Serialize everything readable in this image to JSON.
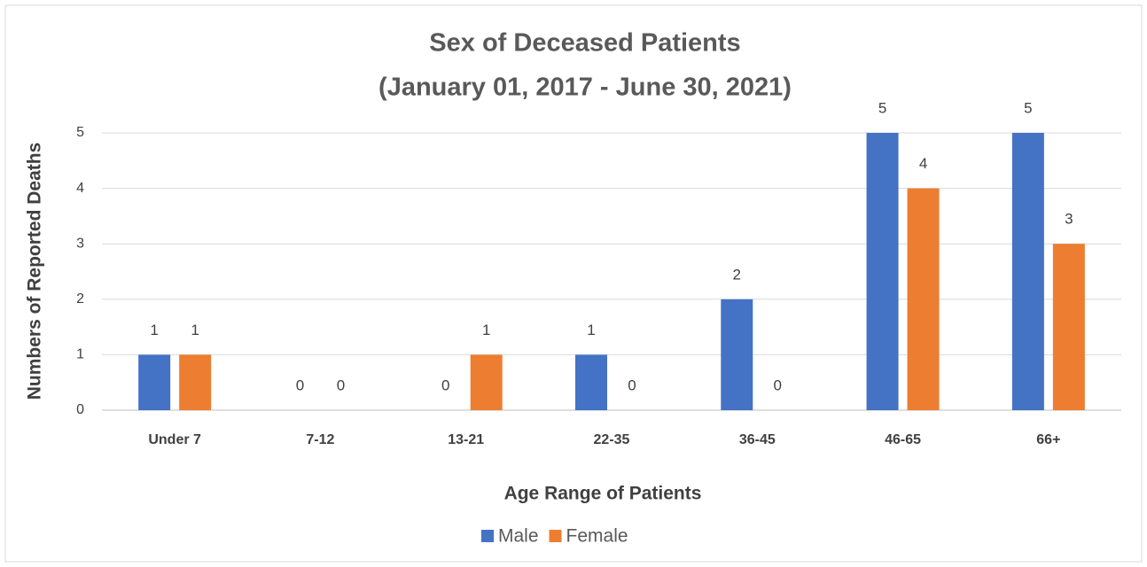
{
  "chart_data": {
    "type": "bar",
    "title": [
      "Sex of Deceased Patients",
      "(January 01, 2017 - June 30, 2021)"
    ],
    "x_label": "Age Range of Patients",
    "y_label": "Numbers of Reported Deaths",
    "categories": [
      "Under 7",
      "7-12",
      "13-21",
      "22-35",
      "36-45",
      "46-65",
      "66+"
    ],
    "series": [
      {
        "name": "Male",
        "color": "#4472c4",
        "values": [
          1,
          0,
          0,
          1,
          2,
          5,
          5
        ]
      },
      {
        "name": "Female",
        "color": "#ed7d31",
        "values": [
          1,
          0,
          1,
          0,
          0,
          4,
          3
        ]
      }
    ],
    "ylim": [
      0,
      5
    ],
    "yticks": [
      0,
      1,
      2,
      3,
      4,
      5
    ],
    "grid": true,
    "legend": "bottom"
  }
}
